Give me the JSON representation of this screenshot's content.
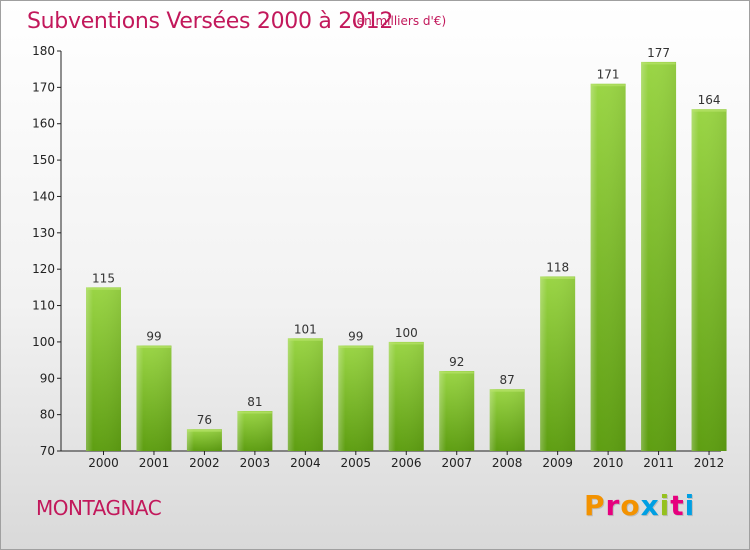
{
  "header": {
    "title": "Subventions Versées 2000 à 2012",
    "subtitle": "(en milliers d'€)"
  },
  "footer": {
    "commune": "MONTAGNAC",
    "logo_letters": [
      "P",
      "r",
      "o",
      "x",
      "i",
      "t",
      "i"
    ],
    "logo_colors": [
      "#f39200",
      "#e6007e",
      "#f39200",
      "#009fe3",
      "#95c11f",
      "#e6007e",
      "#009fe3"
    ]
  },
  "chart_data": {
    "type": "bar",
    "categories": [
      "2000",
      "2001",
      "2002",
      "2003",
      "2004",
      "2005",
      "2006",
      "2007",
      "2008",
      "2009",
      "2010",
      "2011",
      "2012"
    ],
    "values": [
      115,
      99,
      76,
      81,
      101,
      99,
      100,
      92,
      87,
      118,
      171,
      177,
      164
    ],
    "ylim": [
      70,
      180
    ],
    "yticks": [
      70,
      80,
      90,
      100,
      110,
      120,
      130,
      140,
      150,
      160,
      170,
      180
    ],
    "grid": false,
    "bar_color": "#7dc526"
  }
}
